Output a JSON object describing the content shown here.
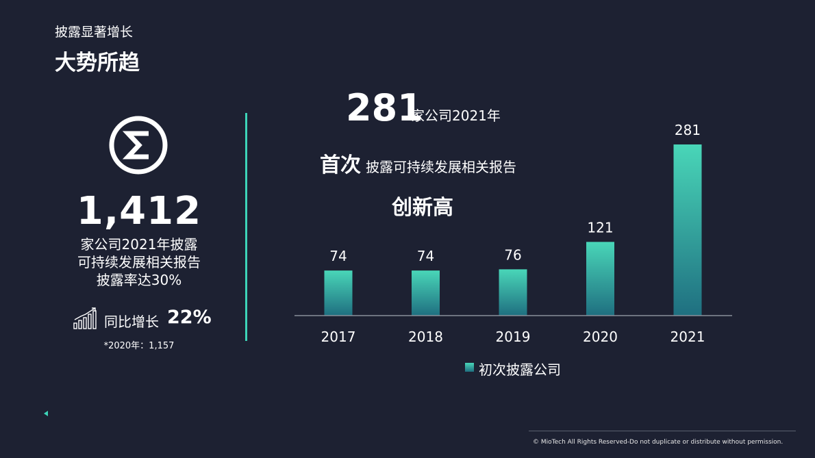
{
  "header": {
    "subtitle": "披露显著增长",
    "title": "大势所趋"
  },
  "stat": {
    "icon": "sigma-icon",
    "number": "1,412",
    "lines": [
      "家公司2021年披露",
      "可持续发展相关报告",
      "披露率达30%"
    ],
    "growth_icon": "bar-chart-growth-icon",
    "growth_label": "同比增长",
    "growth_value": "22%",
    "footnote": "*2020年：1,157"
  },
  "headline": {
    "number": "281",
    "number_sub": "家公司2021年",
    "first": "首次",
    "first_sub": "披露可持续发展相关报告",
    "record": "创新高"
  },
  "chart_data": {
    "type": "bar",
    "categories": [
      "2017",
      "2018",
      "2019",
      "2020",
      "2021"
    ],
    "series": [
      {
        "name": "初次披露公司",
        "values": [
          74,
          74,
          76,
          121,
          281
        ]
      }
    ],
    "data_labels": [
      "74",
      "74",
      "76",
      "121",
      "281"
    ],
    "title": "",
    "xlabel": "",
    "ylabel": "",
    "ylim": [
      0,
      300
    ],
    "grid": false,
    "legend": "bottom",
    "colors": {
      "bar_top": "#49d6b8",
      "bar_bottom": "#1f6f80",
      "axis": "#8a8f9a"
    }
  },
  "footer": {
    "copyright": "© MioTech All Rights Reserved-Do not duplicate or distribute without permission."
  },
  "colors": {
    "background": "#1d2132",
    "accent": "#3dd4b8",
    "text": "#ffffff"
  }
}
